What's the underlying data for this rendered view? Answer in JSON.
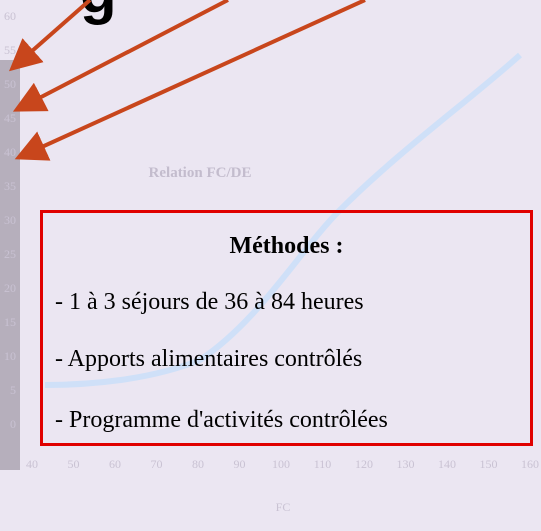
{
  "background_chart": {
    "title": "Relation FC/DE",
    "x_label": "FC",
    "xlim": [
      40,
      160
    ],
    "xticks": [
      40,
      50,
      60,
      70,
      80,
      90,
      100,
      110,
      120,
      130,
      140,
      150,
      160
    ],
    "ylim": [
      0,
      60
    ],
    "yticks": [
      0,
      5,
      10,
      15,
      20,
      25,
      30,
      35,
      40,
      45,
      50,
      55,
      60
    ]
  },
  "box": {
    "title": "Méthodes :",
    "items": [
      "- 1 à 3 séjours de 36 à 84 heures",
      "- Apports alimentaires contrôlés",
      "- Programme d'activités contrôlées"
    ]
  }
}
